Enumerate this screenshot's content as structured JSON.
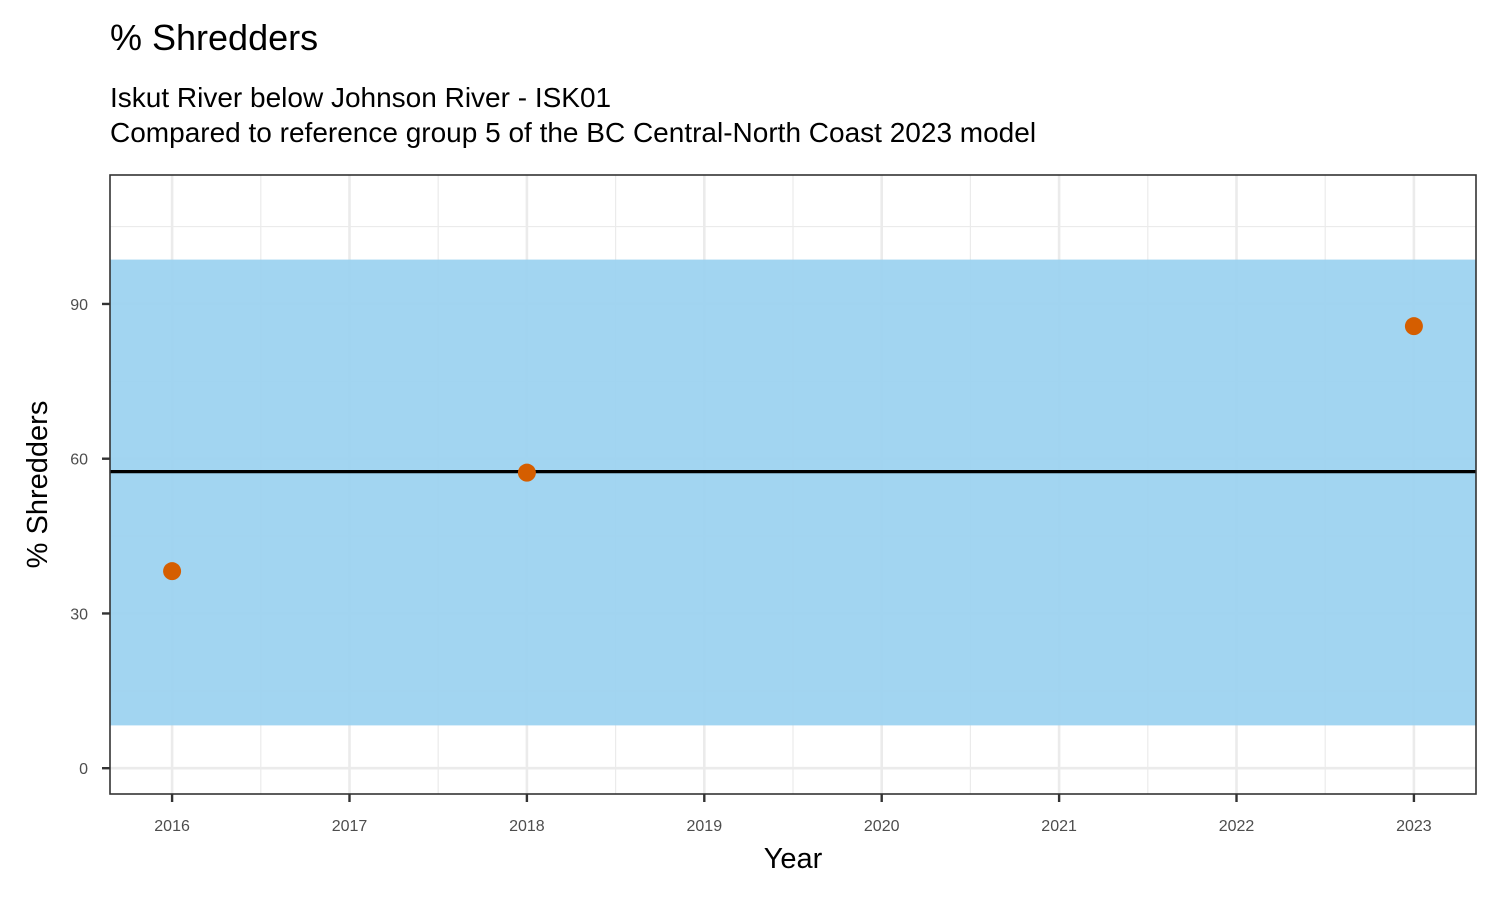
{
  "chart_data": {
    "type": "scatter",
    "title": "% Shredders",
    "subtitle_lines": [
      "Iskut River below Johnson River - ISK01",
      "Compared to reference group 5 of the BC Central-North Coast 2023 model"
    ],
    "xlabel": "Year",
    "ylabel": "% Shredders",
    "x_ticks": [
      2016,
      2017,
      2018,
      2019,
      2020,
      2021,
      2022,
      2023
    ],
    "y_ticks": [
      0,
      30,
      60,
      90
    ],
    "xlim": [
      2015.65,
      2023.35
    ],
    "ylim": [
      -5,
      115
    ],
    "grid": true,
    "points": [
      {
        "x": 2016,
        "y": 38.2
      },
      {
        "x": 2018,
        "y": 57.3
      },
      {
        "x": 2023,
        "y": 85.7
      }
    ],
    "reference_band": {
      "lower": 8.3,
      "upper": 98.6
    },
    "reference_line": 57.5,
    "colors": {
      "band": "#9AD1F0",
      "points": "#D55E00",
      "reference_line": "#000000",
      "grid": "#EBEBEB",
      "panel_border": "#333333"
    }
  }
}
